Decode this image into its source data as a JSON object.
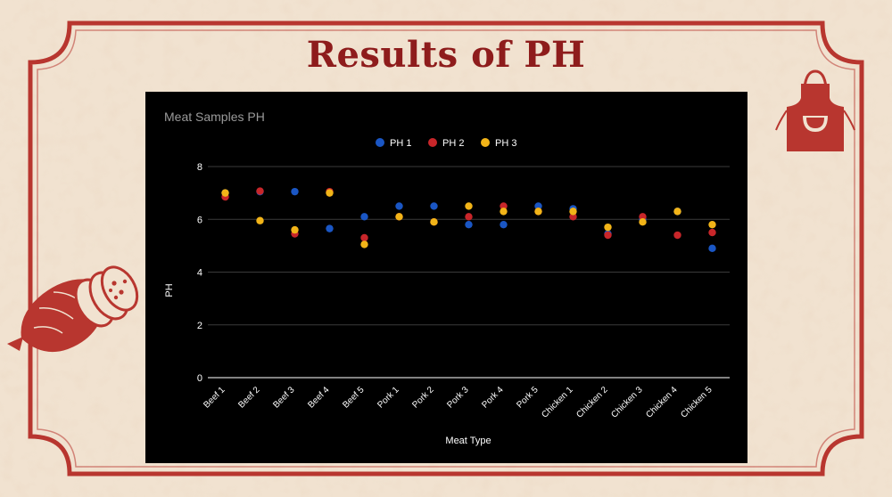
{
  "slide": {
    "title": "Results of PH"
  },
  "colors": {
    "background": "#f1e2d0",
    "frame": "#b8362f",
    "title": "#8e1c1c",
    "panel": "#000000"
  },
  "icons": {
    "corner": "apron-icon",
    "side": "sausage-icon"
  },
  "chart_data": {
    "type": "scatter",
    "title": "Meat Samples PH",
    "xlabel": "Meat Type",
    "ylabel": "PH",
    "ylim": [
      0,
      8
    ],
    "yticks": [
      0,
      2,
      4,
      6,
      8
    ],
    "grid": true,
    "legend_position": "top",
    "categories": [
      "Beef 1",
      "Beef 2",
      "Beef 3",
      "Beef 4",
      "Beef 5",
      "Pork 1",
      "Pork 2",
      "Pork 3",
      "Pork 4",
      "Pork 5",
      "Chicken 1",
      "Chicken 2",
      "Chicken 3",
      "Chicken 4",
      "Chicken 5"
    ],
    "series": [
      {
        "name": "PH 1",
        "color": "#1a56c4",
        "values": [
          7.0,
          7.05,
          7.05,
          5.65,
          6.1,
          6.5,
          6.5,
          5.8,
          5.8,
          6.5,
          6.4,
          5.45,
          6.0,
          6.3,
          4.9
        ]
      },
      {
        "name": "PH 2",
        "color": "#c8262a",
        "values": [
          6.85,
          7.07,
          5.45,
          7.05,
          5.3,
          6.1,
          5.9,
          6.1,
          6.5,
          6.3,
          6.1,
          5.4,
          6.1,
          5.4,
          5.5
        ]
      },
      {
        "name": "PH 3",
        "color": "#f2b418",
        "values": [
          7.0,
          5.95,
          5.6,
          7.0,
          5.05,
          6.1,
          5.9,
          6.5,
          6.3,
          6.3,
          6.3,
          5.7,
          5.9,
          6.3,
          5.8
        ]
      }
    ]
  }
}
